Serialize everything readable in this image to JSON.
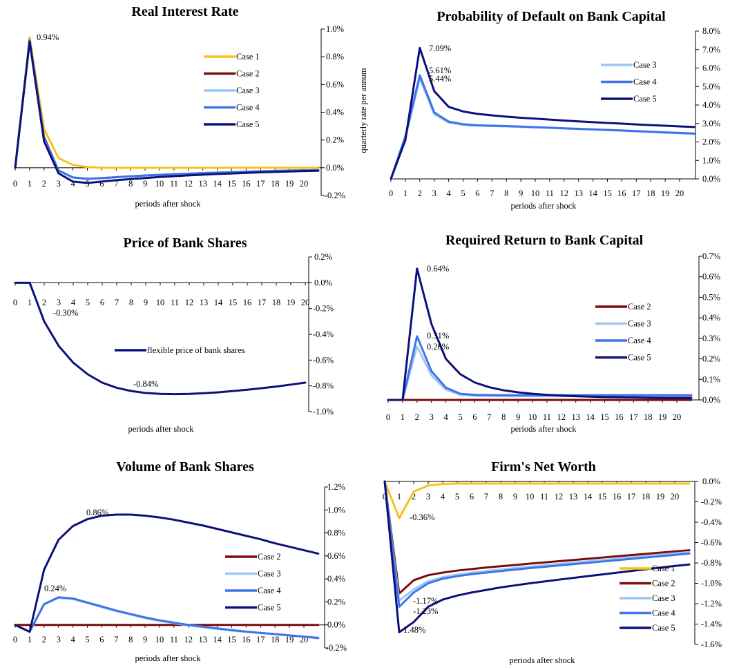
{
  "colors": {
    "Case 1": "#f6c31a",
    "Case 2": "#7a0b0b",
    "Case 3": "#9cc7f2",
    "Case 4": "#3f73e8",
    "Case 5": "#0c117a",
    "flexible price of bank shares": "#0c117a"
  },
  "chart_data": [
    {
      "type": "line",
      "title": "Real Interest Rate",
      "xlabel": "periods after shock",
      "ylabel": "quarterly rate per annum",
      "x": [
        0,
        1,
        2,
        3,
        4,
        5,
        6,
        7,
        8,
        9,
        10,
        11,
        12,
        13,
        14,
        15,
        16,
        17,
        18,
        19,
        20,
        21
      ],
      "xticks": [
        "0",
        "1",
        "2",
        "3",
        "4",
        "5",
        "6",
        "7",
        "8",
        "9",
        "10",
        "11",
        "12",
        "13",
        "14",
        "15",
        "16",
        "17",
        "18",
        "19",
        "20"
      ],
      "yticks": [
        "1.0%",
        "0.8%",
        "0.6%",
        "0.4%",
        "0.2%",
        "0.0%",
        "-0.2%"
      ],
      "ylim": [
        -0.2,
        1.0
      ],
      "grid": false,
      "legend": "right",
      "series": [
        {
          "name": "Case 1",
          "values": [
            0,
            0.94,
            0.28,
            0.07,
            0.02,
            0.005,
            0,
            0,
            0,
            0,
            0,
            0,
            0,
            0,
            0,
            0,
            0,
            0,
            0,
            0,
            0,
            0
          ]
        },
        {
          "name": "Case 2",
          "values": [
            0,
            0.92,
            0.22,
            -0.02,
            -0.07,
            -0.08,
            -0.075,
            -0.068,
            -0.062,
            -0.056,
            -0.051,
            -0.047,
            -0.043,
            -0.039,
            -0.035,
            -0.032,
            -0.029,
            -0.026,
            -0.023,
            -0.021,
            -0.019,
            -0.017
          ]
        },
        {
          "name": "Case 3",
          "values": [
            0,
            0.92,
            0.21,
            -0.02,
            -0.07,
            -0.08,
            -0.075,
            -0.068,
            -0.062,
            -0.056,
            -0.051,
            -0.047,
            -0.043,
            -0.039,
            -0.035,
            -0.032,
            -0.029,
            -0.026,
            -0.023,
            -0.021,
            -0.019,
            -0.017
          ]
        },
        {
          "name": "Case 4",
          "values": [
            0,
            0.92,
            0.21,
            -0.02,
            -0.07,
            -0.08,
            -0.075,
            -0.068,
            -0.062,
            -0.056,
            -0.051,
            -0.047,
            -0.043,
            -0.039,
            -0.035,
            -0.032,
            -0.029,
            -0.026,
            -0.023,
            -0.021,
            -0.019,
            -0.017
          ]
        },
        {
          "name": "Case 5",
          "values": [
            0,
            0.91,
            0.19,
            -0.04,
            -0.1,
            -0.11,
            -0.1,
            -0.09,
            -0.082,
            -0.074,
            -0.067,
            -0.061,
            -0.055,
            -0.05,
            -0.045,
            -0.041,
            -0.037,
            -0.033,
            -0.03,
            -0.027,
            -0.024,
            -0.022
          ]
        }
      ],
      "annotations": [
        {
          "text": "0.94%",
          "x": 1,
          "y": 0.94
        }
      ]
    },
    {
      "type": "line",
      "title": "Probability of Default on Bank Capital",
      "xlabel": "periods after shock",
      "ylabel": "",
      "x": [
        0,
        1,
        2,
        3,
        4,
        5,
        6,
        7,
        8,
        9,
        10,
        11,
        12,
        13,
        14,
        15,
        16,
        17,
        18,
        19,
        20,
        21
      ],
      "xticks": [
        "0",
        "1",
        "2",
        "3",
        "4",
        "5",
        "6",
        "7",
        "8",
        "9",
        "10",
        "11",
        "12",
        "13",
        "14",
        "15",
        "16",
        "17",
        "18",
        "19",
        "20"
      ],
      "yticks": [
        "8.0%",
        "7.0%",
        "6.0%",
        "5.0%",
        "4.0%",
        "3.0%",
        "2.0%",
        "1.0%",
        "0.0%"
      ],
      "ylim": [
        0,
        8.0
      ],
      "grid": false,
      "legend": "right",
      "series": [
        {
          "name": "Case 3",
          "values": [
            0,
            2.2,
            5.44,
            3.5,
            3.05,
            2.92,
            2.88,
            2.86,
            2.84,
            2.81,
            2.79,
            2.76,
            2.73,
            2.7,
            2.67,
            2.64,
            2.61,
            2.57,
            2.54,
            2.5,
            2.47,
            2.43
          ]
        },
        {
          "name": "Case 4",
          "values": [
            0,
            2.3,
            5.61,
            3.6,
            3.1,
            2.96,
            2.9,
            2.88,
            2.86,
            2.83,
            2.8,
            2.77,
            2.74,
            2.71,
            2.68,
            2.65,
            2.62,
            2.59,
            2.55,
            2.52,
            2.49,
            2.46
          ]
        },
        {
          "name": "Case 5",
          "values": [
            0,
            2.1,
            7.09,
            4.75,
            3.9,
            3.65,
            3.52,
            3.44,
            3.37,
            3.31,
            3.26,
            3.21,
            3.16,
            3.11,
            3.07,
            3.03,
            2.99,
            2.95,
            2.91,
            2.88,
            2.84,
            2.81
          ]
        }
      ],
      "annotations": [
        {
          "text": "7.09%",
          "x": 2,
          "y": 7.09
        },
        {
          "text": "5.61%",
          "x": 2,
          "y": 5.61
        },
        {
          "text": "5.44%",
          "x": 2,
          "y": 5.44
        }
      ]
    },
    {
      "type": "line",
      "title": "Price of Bank Shares",
      "xlabel": "periods after shock",
      "ylabel": "",
      "x": [
        0,
        1,
        2,
        3,
        4,
        5,
        6,
        7,
        8,
        9,
        10,
        11,
        12,
        13,
        14,
        15,
        16,
        17,
        18,
        19,
        20
      ],
      "xticks": [
        "0",
        "1",
        "2",
        "3",
        "4",
        "5",
        "6",
        "7",
        "8",
        "9",
        "10",
        "11",
        "12",
        "13",
        "14",
        "15",
        "16",
        "17",
        "18",
        "19",
        "20"
      ],
      "yticks": [
        "0.2%",
        "0.0%",
        "-0.2%",
        "-0.4%",
        "-0.6%",
        "-0.8%",
        "-1.0%"
      ],
      "ylim": [
        -1.0,
        0.2
      ],
      "grid": false,
      "legend": "center",
      "series": [
        {
          "name": "flexible price of bank shares",
          "values": [
            0,
            0,
            -0.3,
            -0.49,
            -0.62,
            -0.71,
            -0.775,
            -0.815,
            -0.84,
            -0.855,
            -0.862,
            -0.864,
            -0.862,
            -0.857,
            -0.85,
            -0.84,
            -0.83,
            -0.818,
            -0.805,
            -0.79,
            -0.775
          ]
        }
      ],
      "annotations": [
        {
          "text": "-0.30%",
          "x": 2,
          "y": -0.3
        },
        {
          "text": "-0.84%",
          "x": 8,
          "y": -0.84
        }
      ]
    },
    {
      "type": "line",
      "title": "Required Return to Bank Capital",
      "xlabel": "periods after shock",
      "ylabel": "",
      "x": [
        0,
        1,
        2,
        3,
        4,
        5,
        6,
        7,
        8,
        9,
        10,
        11,
        12,
        13,
        14,
        15,
        16,
        17,
        18,
        19,
        20,
        21
      ],
      "xticks": [
        "0",
        "1",
        "2",
        "3",
        "4",
        "5",
        "6",
        "7",
        "8",
        "9",
        "10",
        "11",
        "12",
        "13",
        "14",
        "15",
        "16",
        "17",
        "18",
        "19",
        "20"
      ],
      "yticks": [
        "0.7%",
        "0.6%",
        "0.5%",
        "0.4%",
        "0.3%",
        "0.2%",
        "0.1%",
        "0.0%"
      ],
      "ylim": [
        0,
        0.7
      ],
      "grid": false,
      "legend": "right",
      "series": [
        {
          "name": "Case 2",
          "values": [
            0,
            0,
            0,
            0,
            0,
            0,
            0,
            0,
            0,
            0,
            0,
            0,
            0,
            0,
            0,
            0,
            0,
            0,
            0,
            0,
            0,
            0
          ]
        },
        {
          "name": "Case 3",
          "values": [
            0,
            0,
            0.26,
            0.12,
            0.05,
            0.025,
            0.02,
            0.019,
            0.018,
            0.018,
            0.018,
            0.018,
            0.018,
            0.018,
            0.018,
            0.018,
            0.018,
            0.018,
            0.018,
            0.018,
            0.018,
            0.018
          ]
        },
        {
          "name": "Case 4",
          "values": [
            0,
            0,
            0.31,
            0.14,
            0.06,
            0.03,
            0.025,
            0.024,
            0.023,
            0.023,
            0.023,
            0.023,
            0.023,
            0.023,
            0.023,
            0.023,
            0.023,
            0.023,
            0.023,
            0.023,
            0.023,
            0.023
          ]
        },
        {
          "name": "Case 5",
          "values": [
            0,
            0,
            0.64,
            0.37,
            0.2,
            0.125,
            0.085,
            0.062,
            0.047,
            0.037,
            0.03,
            0.025,
            0.021,
            0.018,
            0.016,
            0.014,
            0.013,
            0.012,
            0.011,
            0.01,
            0.01,
            0.01
          ]
        }
      ],
      "annotations": [
        {
          "text": "0.64%",
          "x": 2,
          "y": 0.64
        },
        {
          "text": "0.31%",
          "x": 2,
          "y": 0.31
        },
        {
          "text": "0.26%",
          "x": 2,
          "y": 0.26
        }
      ]
    },
    {
      "type": "line",
      "title": "Volume of Bank Shares",
      "xlabel": "periods after shock",
      "ylabel": "",
      "x": [
        0,
        1,
        2,
        3,
        4,
        5,
        6,
        7,
        8,
        9,
        10,
        11,
        12,
        13,
        14,
        15,
        16,
        17,
        18,
        19,
        20,
        21
      ],
      "xticks": [
        "0",
        "1",
        "2",
        "3",
        "4",
        "5",
        "6",
        "7",
        "8",
        "9",
        "10",
        "11",
        "12",
        "13",
        "14",
        "15",
        "16",
        "17",
        "18",
        "19",
        "20"
      ],
      "yticks": [
        "1.2%",
        "1.0%",
        "0.8%",
        "0.6%",
        "0.4%",
        "0.2%",
        "0.0%",
        "-0.2%"
      ],
      "ylim": [
        -0.2,
        1.2
      ],
      "grid": false,
      "legend": "right",
      "series": [
        {
          "name": "Case 2",
          "values": [
            0,
            0,
            0,
            0,
            0,
            0,
            0,
            0,
            0,
            0,
            0,
            0,
            0,
            0,
            0,
            0,
            0,
            0,
            0,
            0,
            0,
            0
          ]
        },
        {
          "name": "Case 3",
          "values": [
            0,
            -0.06,
            0.18,
            0.235,
            0.225,
            0.19,
            0.155,
            0.12,
            0.09,
            0.06,
            0.035,
            0.015,
            -0.005,
            -0.02,
            -0.035,
            -0.05,
            -0.06,
            -0.07,
            -0.08,
            -0.09,
            -0.1,
            -0.11
          ]
        },
        {
          "name": "Case 4",
          "values": [
            0,
            -0.06,
            0.18,
            0.24,
            0.23,
            0.195,
            0.16,
            0.125,
            0.095,
            0.065,
            0.04,
            0.02,
            0,
            -0.015,
            -0.03,
            -0.045,
            -0.058,
            -0.07,
            -0.08,
            -0.092,
            -0.102,
            -0.115
          ]
        },
        {
          "name": "Case 5",
          "values": [
            0,
            -0.06,
            0.48,
            0.74,
            0.86,
            0.92,
            0.95,
            0.96,
            0.96,
            0.95,
            0.935,
            0.915,
            0.89,
            0.865,
            0.835,
            0.805,
            0.775,
            0.745,
            0.71,
            0.68,
            0.65,
            0.62
          ]
        }
      ],
      "annotations": [
        {
          "text": "0.86%",
          "x": 5,
          "y": 0.86
        },
        {
          "text": "0.24%",
          "x": 3,
          "y": 0.24
        }
      ]
    },
    {
      "type": "line",
      "title": "Firm's Net Worth",
      "xlabel": "periods after shock",
      "ylabel": "",
      "x": [
        0,
        1,
        2,
        3,
        4,
        5,
        6,
        7,
        8,
        9,
        10,
        11,
        12,
        13,
        14,
        15,
        16,
        17,
        18,
        19,
        20,
        21
      ],
      "xticks": [
        "0",
        "1",
        "2",
        "3",
        "4",
        "5",
        "6",
        "7",
        "8",
        "9",
        "10",
        "11",
        "12",
        "13",
        "14",
        "15",
        "16",
        "17",
        "18",
        "19",
        "20"
      ],
      "yticks": [
        "0.0%",
        "-0.2%",
        "-0.4%",
        "-0.6%",
        "-0.8%",
        "-1.0%",
        "-1.2%",
        "-1.4%",
        "-1.6%"
      ],
      "ylim": [
        -1.6,
        0.0
      ],
      "grid": false,
      "legend": "bottom-right",
      "series": [
        {
          "name": "Case 1",
          "values": [
            0,
            -0.36,
            -0.1,
            -0.04,
            -0.025,
            -0.02,
            -0.02,
            -0.02,
            -0.02,
            -0.02,
            -0.02,
            -0.02,
            -0.02,
            -0.02,
            -0.02,
            -0.02,
            -0.02,
            -0.02,
            -0.02,
            -0.02,
            -0.02,
            -0.02
          ]
        },
        {
          "name": "Case 2",
          "values": [
            0,
            -1.1,
            -0.97,
            -0.92,
            -0.895,
            -0.875,
            -0.86,
            -0.845,
            -0.832,
            -0.82,
            -0.807,
            -0.795,
            -0.783,
            -0.771,
            -0.759,
            -0.747,
            -0.735,
            -0.723,
            -0.711,
            -0.699,
            -0.687,
            -0.675
          ]
        },
        {
          "name": "Case 3",
          "values": [
            0,
            -1.17,
            -1.06,
            -0.98,
            -0.94,
            -0.915,
            -0.895,
            -0.88,
            -0.865,
            -0.85,
            -0.836,
            -0.823,
            -0.81,
            -0.797,
            -0.784,
            -0.771,
            -0.758,
            -0.745,
            -0.732,
            -0.719,
            -0.706,
            -0.693
          ]
        },
        {
          "name": "Case 4",
          "values": [
            0,
            -1.23,
            -1.09,
            -1.0,
            -0.955,
            -0.93,
            -0.91,
            -0.895,
            -0.88,
            -0.865,
            -0.851,
            -0.838,
            -0.825,
            -0.812,
            -0.799,
            -0.786,
            -0.773,
            -0.76,
            -0.747,
            -0.734,
            -0.721,
            -0.708
          ]
        },
        {
          "name": "Case 5",
          "values": [
            0,
            -1.48,
            -1.38,
            -1.23,
            -1.16,
            -1.12,
            -1.09,
            -1.065,
            -1.04,
            -1.02,
            -1.0,
            -0.982,
            -0.964,
            -0.947,
            -0.93,
            -0.913,
            -0.896,
            -0.879,
            -0.862,
            -0.846,
            -0.83,
            -0.815
          ]
        }
      ],
      "annotations": [
        {
          "text": "-0.36%",
          "x": 1,
          "y": -0.36
        },
        {
          "text": "-1.17%",
          "x": 1,
          "y": -1.17
        },
        {
          "text": "-1.23%",
          "x": 1,
          "y": -1.23
        },
        {
          "text": "-1.48%",
          "x": 1,
          "y": -1.48
        }
      ]
    }
  ]
}
